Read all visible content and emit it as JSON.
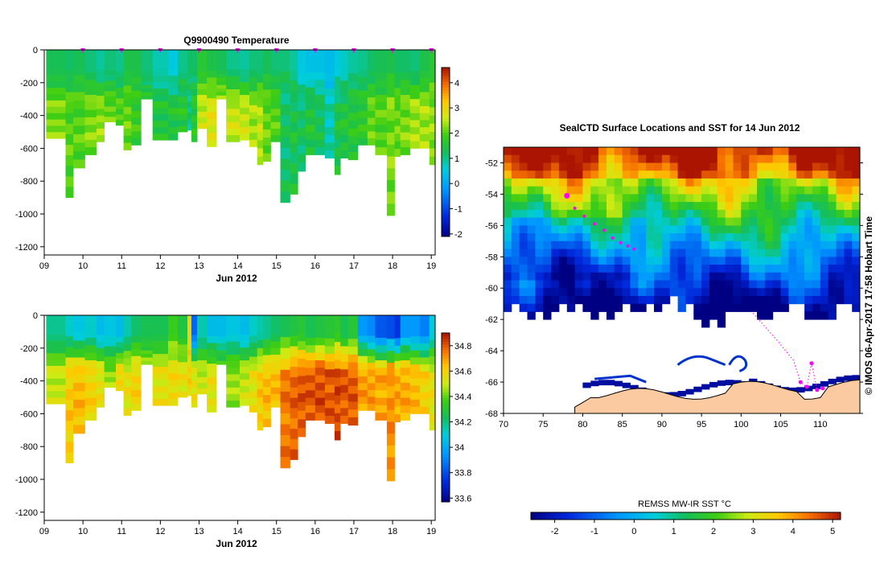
{
  "chart_data": [
    {
      "type": "heatmap",
      "title": "Q9900490  Temperature",
      "xlabel": "Jun 2012",
      "x_ticks": [
        "09",
        "10",
        "11",
        "12",
        "13",
        "14",
        "15",
        "16",
        "17",
        "18",
        "19"
      ],
      "xlim": [
        9,
        19.1
      ],
      "ylim": [
        -1250,
        0
      ],
      "y_ticks": [
        0,
        -200,
        -400,
        -600,
        -800,
        -1000,
        -1200
      ],
      "colorbar": {
        "min": -2.1,
        "max": 4.6,
        "ticks": [
          4,
          3,
          2,
          1,
          0,
          -1,
          -2
        ]
      },
      "marker_days": [
        10,
        11,
        12,
        13,
        14,
        15,
        16,
        17,
        18,
        19
      ],
      "profile_start_days": [
        9.05,
        9.55,
        9.75,
        10.05,
        10.35,
        10.55,
        10.85,
        11.05,
        11.25,
        11.5,
        11.8,
        12.2,
        12.45,
        12.7,
        12.8,
        12.95,
        13.2,
        13.45,
        13.7,
        14.05,
        14.3,
        14.5,
        14.65,
        14.85,
        15.1,
        15.35,
        15.55,
        15.75,
        16.0,
        16.25,
        16.5,
        16.65,
        16.85,
        17.1,
        17.35,
        17.55,
        17.85,
        18.05,
        18.2,
        18.45,
        18.7,
        18.95
      ],
      "profile_max_depth": [
        540,
        900,
        720,
        640,
        560,
        440,
        460,
        610,
        580,
        300,
        550,
        550,
        500,
        490,
        560,
        480,
        590,
        300,
        560,
        550,
        590,
        700,
        680,
        560,
        930,
        880,
        740,
        640,
        640,
        660,
        760,
        660,
        670,
        580,
        580,
        640,
        1010,
        650,
        640,
        600,
        600,
        700
      ],
      "series": [
        {
          "name": "",
          "surface_values": [
            1.3,
            1.2,
            1.3,
            1.1,
            0.9,
            1.1,
            1.0,
            1.4,
            1.4,
            1.1,
            0.8,
            0.5,
            1.0,
            1.2,
            1.2,
            1.6,
            1.4,
            1.3,
            1.0,
            0.9,
            1.1,
            1.1,
            1.3,
            1.1,
            1.1,
            0.9,
            0.5,
            0.4,
            0.4,
            0.3,
            0.5,
            0.7,
            0.9,
            1.0,
            1.2,
            1.3,
            1.4,
            1.2,
            1.2,
            1.1,
            1.4,
            1.6
          ]
        },
        {
          "name": "",
          "deep_values": [
            2.2,
            2.0,
            2.0,
            2.2,
            2.3,
            2.1,
            2.0,
            2.1,
            1.8,
            1.7,
            1.5,
            1.5,
            1.6,
            1.0,
            1.6,
            2.6,
            2.8,
            2.7,
            2.6,
            2.6,
            2.4,
            2.5,
            2.1,
            2.0,
            1.2,
            1.4,
            1.2,
            1.5,
            1.3,
            0.8,
            1.4,
            1.5,
            1.6,
            1.7,
            2.1,
            2.0,
            2.2,
            2.1,
            2.2,
            2.4,
            2.4,
            2.3
          ]
        }
      ]
    },
    {
      "type": "heatmap",
      "title": "",
      "xlabel": "Jun 2012",
      "x_ticks": [
        "09",
        "10",
        "11",
        "12",
        "13",
        "14",
        "15",
        "16",
        "17",
        "18",
        "19"
      ],
      "xlim": [
        9,
        19.1
      ],
      "ylim": [
        -1250,
        0
      ],
      "y_ticks": [
        0,
        -200,
        -400,
        -600,
        -800,
        -1000,
        -1200
      ],
      "colorbar": {
        "min": 33.57,
        "max": 34.9,
        "ticks": [
          34.8,
          34.6,
          34.4,
          34.2,
          34,
          33.8,
          33.6
        ]
      },
      "series": [
        {
          "name": "",
          "surface_values": [
            34.18,
            34.12,
            34.08,
            34.12,
            34.05,
            34.08,
            34.05,
            34.15,
            34.22,
            34.25,
            34.25,
            34.35,
            34.28,
            34.6,
            33.85,
            34.15,
            34.05,
            34.05,
            34.08,
            34.05,
            34.12,
            34.15,
            34.18,
            34.22,
            34.25,
            34.28,
            34.3,
            34.25,
            34.28,
            34.3,
            34.32,
            34.25,
            34.3,
            33.95,
            33.92,
            33.82,
            33.8,
            33.75,
            33.95,
            33.95,
            33.9,
            34.1
          ]
        },
        {
          "name": "",
          "deep_values": [
            34.5,
            34.62,
            34.65,
            34.6,
            34.55,
            34.45,
            34.6,
            34.55,
            34.6,
            34.5,
            34.55,
            34.58,
            34.55,
            34.6,
            34.55,
            34.5,
            34.55,
            34.45,
            34.45,
            34.5,
            34.55,
            34.62,
            34.65,
            34.65,
            34.75,
            34.78,
            34.8,
            34.8,
            34.82,
            34.8,
            34.82,
            34.8,
            34.8,
            34.7,
            34.7,
            34.68,
            34.72,
            34.68,
            34.68,
            34.65,
            34.6,
            34.55
          ]
        }
      ]
    },
    {
      "type": "heatmap",
      "title": "SealCTD Surface Locations and SST for 14 Jun 2012",
      "xlabel": "",
      "ylabel": "",
      "xlim": [
        70,
        115
      ],
      "ylim": [
        -68,
        -51
      ],
      "x_ticks": [
        70,
        75,
        80,
        85,
        90,
        95,
        100,
        105,
        110
      ],
      "y_ticks": [
        -52,
        -54,
        -56,
        -58,
        -60,
        -62,
        -64,
        -66,
        -68
      ],
      "colorbar_label": "REMSS MW-IR SST °C",
      "colorbar": {
        "min": -2.6,
        "max": 5.2,
        "ticks": [
          -2,
          -1,
          0,
          1,
          2,
          3,
          4,
          5
        ]
      },
      "side_label": "© IMOS 06-Apr-2017 17:58 Hobart Time",
      "seal_track": [
        {
          "lon": 78.0,
          "lat": -54.1
        },
        {
          "lon": 79.0,
          "lat": -54.9
        },
        {
          "lon": 80.2,
          "lat": -55.4
        },
        {
          "lon": 81.5,
          "lat": -55.9
        },
        {
          "lon": 82.7,
          "lat": -56.3
        },
        {
          "lon": 83.8,
          "lat": -56.8
        },
        {
          "lon": 84.8,
          "lat": -57.1
        },
        {
          "lon": 85.7,
          "lat": -57.3
        },
        {
          "lon": 86.5,
          "lat": -57.5
        }
      ],
      "seal_track_2": [
        {
          "lon": 101.5,
          "lat": -61.6
        },
        {
          "lon": 104.5,
          "lat": -63.3
        },
        {
          "lon": 106.6,
          "lat": -64.6
        },
        {
          "lon": 107.5,
          "lat": -66.0
        },
        {
          "lon": 108.3,
          "lat": -66.3
        },
        {
          "lon": 108.9,
          "lat": -64.8
        },
        {
          "lon": 109.6,
          "lat": -66.5
        },
        {
          "lon": 110.3,
          "lat": -66.4
        }
      ],
      "colors": {
        "land": "#fbcaa0",
        "marker": "#ff00ff",
        "ice_edge": "#0033cc"
      }
    }
  ]
}
